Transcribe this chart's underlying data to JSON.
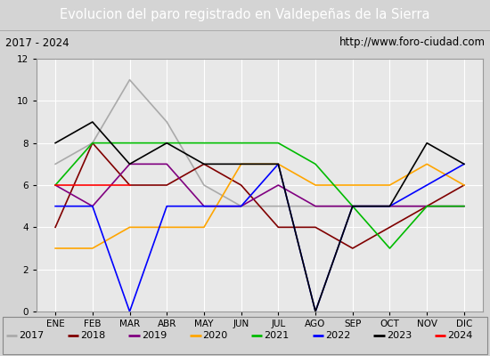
{
  "title": "Evolucion del paro registrado en Valdepeñas de la Sierra",
  "subtitle_left": "2017 - 2024",
  "subtitle_right": "http://www.foro-ciudad.com",
  "months": [
    "ENE",
    "FEB",
    "MAR",
    "ABR",
    "MAY",
    "JUN",
    "JUL",
    "AGO",
    "SEP",
    "OCT",
    "NOV",
    "DIC"
  ],
  "series": {
    "2017": {
      "color": "#aaaaaa",
      "data": [
        7,
        8,
        11,
        9,
        6,
        5,
        5,
        5,
        5,
        5,
        5,
        5
      ]
    },
    "2018": {
      "color": "#800000",
      "data": [
        4,
        8,
        6,
        6,
        7,
        6,
        4,
        4,
        3,
        4,
        5,
        6
      ]
    },
    "2019": {
      "color": "#800080",
      "data": [
        6,
        5,
        7,
        7,
        5,
        5,
        6,
        5,
        5,
        5,
        5,
        5
      ]
    },
    "2020": {
      "color": "#ffa500",
      "data": [
        3,
        3,
        4,
        4,
        4,
        7,
        7,
        6,
        6,
        6,
        7,
        6
      ]
    },
    "2021": {
      "color": "#00bb00",
      "data": [
        6,
        8,
        8,
        8,
        8,
        8,
        8,
        7,
        5,
        3,
        5,
        5
      ]
    },
    "2022": {
      "color": "#0000ff",
      "data": [
        5,
        5,
        0,
        5,
        5,
        5,
        7,
        0,
        5,
        5,
        6,
        7
      ]
    },
    "2023": {
      "color": "#000000",
      "data": [
        8,
        9,
        7,
        8,
        7,
        7,
        7,
        0,
        5,
        5,
        8,
        7
      ]
    },
    "2024": {
      "color": "#ff0000",
      "data": [
        6,
        6,
        6,
        null,
        null,
        null,
        null,
        null,
        null,
        null,
        null,
        null
      ]
    }
  },
  "ylim": [
    0,
    12
  ],
  "yticks": [
    0,
    2,
    4,
    6,
    8,
    10,
    12
  ],
  "title_bg_color": "#4a8ac4",
  "title_text_color": "#ffffff",
  "plot_bg_color": "#e8e8e8",
  "outer_bg_color": "#d4d4d4",
  "subtitle_bg_color": "#d4d4d4",
  "legend_bg_color": "#d4d4d4",
  "title_fontsize": 10.5,
  "subtitle_fontsize": 8.5,
  "tick_fontsize": 7.5,
  "legend_fontsize": 8
}
